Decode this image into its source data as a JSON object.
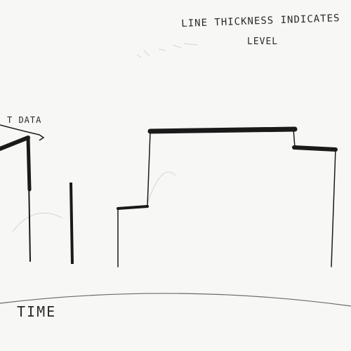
{
  "annotations": {
    "title_line1": "LINE THICKNESS INDICATES",
    "title_line2": "LEVEL",
    "data_label": "T DATA",
    "axis_label": "TIME"
  },
  "colors": {
    "ink": "#1a1a1a",
    "paper": "#f7f7f5",
    "faint": "#c9c9c6"
  }
}
